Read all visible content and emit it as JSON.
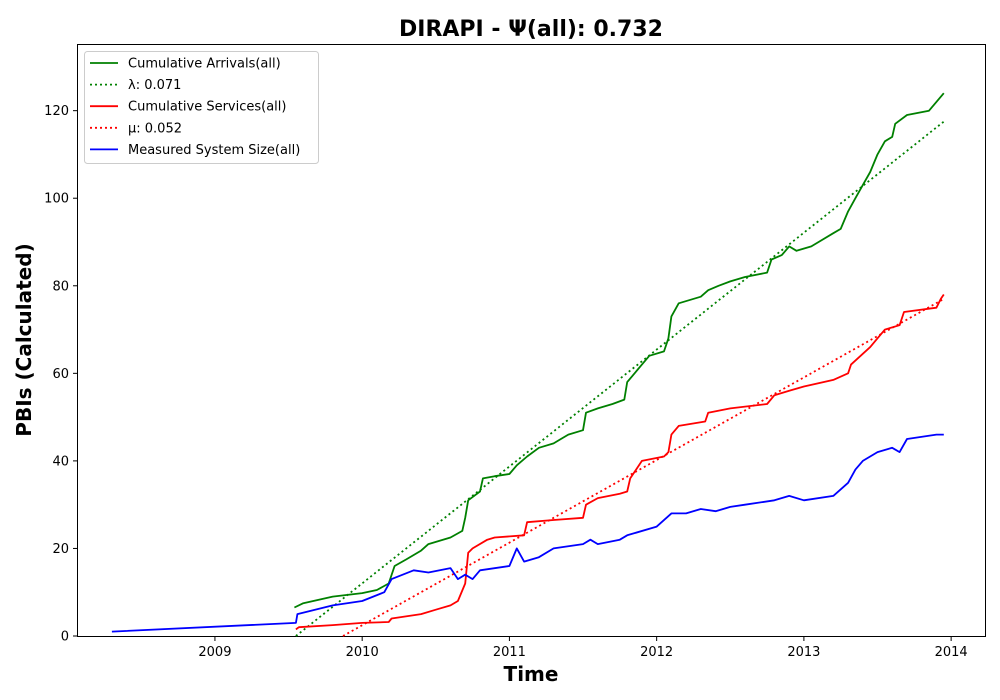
{
  "chart_data": {
    "type": "line",
    "title": "DIRAPI -  Ψ(all): 0.732",
    "xlabel": "Time",
    "ylabel": "PBIs (Calculated)",
    "xlim": [
      2008.07,
      2014.23
    ],
    "ylim": [
      0,
      135
    ],
    "x_ticks": [
      2009,
      2010,
      2011,
      2012,
      2013,
      2014
    ],
    "y_ticks": [
      0,
      20,
      40,
      60,
      80,
      100,
      120
    ],
    "grid": false,
    "legend_position": "upper-left",
    "series": [
      {
        "name": "Cumulative Arrivals(all)",
        "color": "#008000",
        "style": "solid",
        "points": [
          [
            2009.54,
            6.5
          ],
          [
            2009.6,
            7.5
          ],
          [
            2009.8,
            9
          ],
          [
            2010.0,
            9.8
          ],
          [
            2010.1,
            10.5
          ],
          [
            2010.18,
            12
          ],
          [
            2010.22,
            16
          ],
          [
            2010.3,
            17.5
          ],
          [
            2010.4,
            19.5
          ],
          [
            2010.45,
            21
          ],
          [
            2010.6,
            22.5
          ],
          [
            2010.68,
            24
          ],
          [
            2010.7,
            27
          ],
          [
            2010.72,
            31
          ],
          [
            2010.8,
            33
          ],
          [
            2010.82,
            36
          ],
          [
            2010.9,
            36.5
          ],
          [
            2011.0,
            37
          ],
          [
            2011.05,
            39
          ],
          [
            2011.12,
            41
          ],
          [
            2011.2,
            43
          ],
          [
            2011.3,
            44
          ],
          [
            2011.35,
            45
          ],
          [
            2011.4,
            46
          ],
          [
            2011.5,
            47
          ],
          [
            2011.52,
            51
          ],
          [
            2011.6,
            52
          ],
          [
            2011.7,
            53
          ],
          [
            2011.78,
            54
          ],
          [
            2011.8,
            58
          ],
          [
            2011.85,
            60
          ],
          [
            2011.9,
            62
          ],
          [
            2011.95,
            64
          ],
          [
            2012.05,
            65
          ],
          [
            2012.08,
            68
          ],
          [
            2012.1,
            73
          ],
          [
            2012.15,
            76
          ],
          [
            2012.3,
            77.5
          ],
          [
            2012.35,
            79
          ],
          [
            2012.42,
            80
          ],
          [
            2012.5,
            81
          ],
          [
            2012.6,
            82
          ],
          [
            2012.75,
            83
          ],
          [
            2012.78,
            86
          ],
          [
            2012.85,
            87
          ],
          [
            2012.9,
            89
          ],
          [
            2012.95,
            88
          ],
          [
            2013.05,
            89
          ],
          [
            2013.1,
            90
          ],
          [
            2013.2,
            92
          ],
          [
            2013.25,
            93
          ],
          [
            2013.3,
            97
          ],
          [
            2013.35,
            100
          ],
          [
            2013.4,
            103
          ],
          [
            2013.45,
            106
          ],
          [
            2013.5,
            110
          ],
          [
            2013.55,
            113
          ],
          [
            2013.6,
            114
          ],
          [
            2013.62,
            117
          ],
          [
            2013.7,
            119
          ],
          [
            2013.85,
            120
          ],
          [
            2013.9,
            122
          ],
          [
            2013.95,
            124
          ]
        ]
      },
      {
        "name": "λ: 0.071",
        "color": "#008000",
        "style": "dotted",
        "points": [
          [
            2009.55,
            0
          ],
          [
            2013.95,
            117.5
          ]
        ]
      },
      {
        "name": "Cumulative Services(all)",
        "color": "#ff0000",
        "style": "solid",
        "points": [
          [
            2009.55,
            1.5
          ],
          [
            2009.57,
            2
          ],
          [
            2009.8,
            2.5
          ],
          [
            2010.0,
            3
          ],
          [
            2010.18,
            3.2
          ],
          [
            2010.2,
            4
          ],
          [
            2010.4,
            5
          ],
          [
            2010.5,
            6
          ],
          [
            2010.6,
            7
          ],
          [
            2010.65,
            8
          ],
          [
            2010.7,
            12
          ],
          [
            2010.72,
            19
          ],
          [
            2010.75,
            20
          ],
          [
            2010.85,
            22
          ],
          [
            2010.9,
            22.5
          ],
          [
            2011.1,
            23
          ],
          [
            2011.12,
            26
          ],
          [
            2011.3,
            26.5
          ],
          [
            2011.5,
            27
          ],
          [
            2011.52,
            30
          ],
          [
            2011.6,
            31.5
          ],
          [
            2011.75,
            32.5
          ],
          [
            2011.8,
            33
          ],
          [
            2011.82,
            36
          ],
          [
            2011.9,
            40
          ],
          [
            2012.05,
            41
          ],
          [
            2012.08,
            42
          ],
          [
            2012.1,
            46
          ],
          [
            2012.15,
            48
          ],
          [
            2012.33,
            49
          ],
          [
            2012.35,
            51
          ],
          [
            2012.5,
            52
          ],
          [
            2012.75,
            53
          ],
          [
            2012.8,
            55
          ],
          [
            2012.9,
            56
          ],
          [
            2013.0,
            57
          ],
          [
            2013.2,
            58.5
          ],
          [
            2013.3,
            60
          ],
          [
            2013.32,
            62
          ],
          [
            2013.45,
            66
          ],
          [
            2013.5,
            68
          ],
          [
            2013.55,
            70
          ],
          [
            2013.65,
            71
          ],
          [
            2013.68,
            74
          ],
          [
            2013.9,
            75
          ],
          [
            2013.93,
            77
          ],
          [
            2013.95,
            78
          ]
        ]
      },
      {
        "name": "μ: 0.052",
        "color": "#ff0000",
        "style": "dotted",
        "points": [
          [
            2009.87,
            0
          ],
          [
            2013.95,
            77
          ]
        ]
      },
      {
        "name": "Measured System Size(all)",
        "color": "#0000ff",
        "style": "solid",
        "points": [
          [
            2008.3,
            1
          ],
          [
            2009.55,
            3
          ],
          [
            2009.56,
            5
          ],
          [
            2009.8,
            7
          ],
          [
            2010.0,
            8
          ],
          [
            2010.15,
            10
          ],
          [
            2010.2,
            13
          ],
          [
            2010.35,
            15
          ],
          [
            2010.45,
            14.5
          ],
          [
            2010.6,
            15.5
          ],
          [
            2010.65,
            13
          ],
          [
            2010.7,
            14
          ],
          [
            2010.75,
            13
          ],
          [
            2010.8,
            15
          ],
          [
            2011.0,
            16
          ],
          [
            2011.05,
            20
          ],
          [
            2011.1,
            17
          ],
          [
            2011.2,
            18
          ],
          [
            2011.3,
            20
          ],
          [
            2011.5,
            21
          ],
          [
            2011.55,
            22
          ],
          [
            2011.6,
            21
          ],
          [
            2011.75,
            22
          ],
          [
            2011.8,
            23
          ],
          [
            2012.0,
            25
          ],
          [
            2012.1,
            28
          ],
          [
            2012.2,
            28
          ],
          [
            2012.3,
            29
          ],
          [
            2012.4,
            28.5
          ],
          [
            2012.5,
            29.5
          ],
          [
            2012.6,
            30
          ],
          [
            2012.8,
            31
          ],
          [
            2012.9,
            32
          ],
          [
            2013.0,
            31
          ],
          [
            2013.2,
            32
          ],
          [
            2013.3,
            35
          ],
          [
            2013.35,
            38
          ],
          [
            2013.4,
            40
          ],
          [
            2013.5,
            42
          ],
          [
            2013.6,
            43
          ],
          [
            2013.65,
            42
          ],
          [
            2013.7,
            45
          ],
          [
            2013.9,
            46
          ],
          [
            2013.95,
            46
          ]
        ]
      }
    ]
  }
}
